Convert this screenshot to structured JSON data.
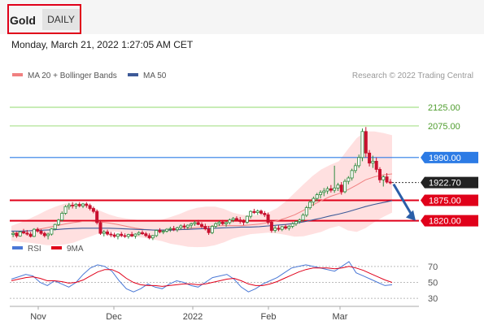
{
  "header": {
    "symbol": "Gold",
    "period_label": "DAILY",
    "datetime": "Monday, March 21, 2022 1:27:05 AM CET"
  },
  "colors": {
    "up": "#2e8b3e",
    "down": "#c8102e",
    "ma20": "#f08080",
    "ma50": "#3d5a98",
    "band_fill": "#ffd6d6",
    "resistance": "#a8e08a",
    "pivot": "#2c7be5",
    "support": "#e0001a",
    "price": "#222222",
    "rsi": "#4a78d6",
    "rsi_ma": "#e0001a"
  },
  "chart_data": [
    {
      "type": "candlestick",
      "title": "",
      "legend": [
        {
          "name": "MA 20 + Bollinger Bands",
          "color": "#f08080"
        },
        {
          "name": "MA 50",
          "color": "#3d5a98"
        }
      ],
      "credit": "Research © 2022 Trading Central",
      "ylim": [
        1758,
        2195
      ],
      "x_ticks": [
        "Nov",
        "Dec",
        "2022",
        "Feb",
        "Mar"
      ],
      "levels": [
        {
          "label": "2125.00",
          "value": 2125,
          "kind": "resistance"
        },
        {
          "label": "2075.00",
          "value": 2075,
          "kind": "resistance"
        },
        {
          "label": "1990.00",
          "value": 1990,
          "kind": "pivot"
        },
        {
          "label": "1922.70",
          "value": 1922.7,
          "kind": "last"
        },
        {
          "label": "1875.00",
          "value": 1875,
          "kind": "support"
        },
        {
          "label": "1820.00",
          "value": 1820,
          "kind": "support"
        }
      ],
      "candles": [
        [
          1783,
          1791,
          1776,
          1786
        ],
        [
          1786,
          1790,
          1774,
          1779
        ],
        [
          1779,
          1793,
          1777,
          1790
        ],
        [
          1790,
          1798,
          1784,
          1787
        ],
        [
          1787,
          1795,
          1780,
          1784
        ],
        [
          1784,
          1790,
          1775,
          1778
        ],
        [
          1778,
          1800,
          1776,
          1797
        ],
        [
          1797,
          1802,
          1788,
          1792
        ],
        [
          1792,
          1797,
          1782,
          1786
        ],
        [
          1786,
          1791,
          1775,
          1780
        ],
        [
          1780,
          1788,
          1770,
          1784
        ],
        [
          1784,
          1800,
          1780,
          1798
        ],
        [
          1798,
          1812,
          1794,
          1810
        ],
        [
          1810,
          1825,
          1806,
          1822
        ],
        [
          1822,
          1845,
          1818,
          1840
        ],
        [
          1840,
          1862,
          1836,
          1858
        ],
        [
          1858,
          1868,
          1850,
          1862
        ],
        [
          1862,
          1870,
          1853,
          1860
        ],
        [
          1860,
          1868,
          1852,
          1864
        ],
        [
          1864,
          1870,
          1856,
          1860
        ],
        [
          1860,
          1868,
          1854,
          1865
        ],
        [
          1865,
          1870,
          1855,
          1861
        ],
        [
          1861,
          1866,
          1848,
          1853
        ],
        [
          1853,
          1858,
          1840,
          1845
        ],
        [
          1845,
          1850,
          1810,
          1815
        ],
        [
          1815,
          1822,
          1782,
          1786
        ],
        [
          1786,
          1795,
          1778,
          1790
        ],
        [
          1790,
          1796,
          1780,
          1784
        ],
        [
          1784,
          1790,
          1776,
          1782
        ],
        [
          1782,
          1788,
          1774,
          1778
        ],
        [
          1778,
          1786,
          1770,
          1784
        ],
        [
          1784,
          1790,
          1776,
          1780
        ],
        [
          1780,
          1786,
          1774,
          1778
        ],
        [
          1778,
          1785,
          1772,
          1783
        ],
        [
          1783,
          1790,
          1776,
          1779
        ],
        [
          1779,
          1786,
          1772,
          1784
        ],
        [
          1784,
          1792,
          1780,
          1788
        ],
        [
          1788,
          1794,
          1782,
          1785
        ],
        [
          1785,
          1790,
          1776,
          1780
        ],
        [
          1780,
          1786,
          1770,
          1774
        ],
        [
          1774,
          1782,
          1768,
          1780
        ],
        [
          1780,
          1796,
          1776,
          1794
        ],
        [
          1794,
          1800,
          1786,
          1790
        ],
        [
          1790,
          1796,
          1784,
          1792
        ],
        [
          1792,
          1800,
          1788,
          1797
        ],
        [
          1797,
          1804,
          1790,
          1799
        ],
        [
          1799,
          1806,
          1792,
          1796
        ],
        [
          1796,
          1804,
          1790,
          1801
        ],
        [
          1801,
          1810,
          1796,
          1806
        ],
        [
          1806,
          1812,
          1798,
          1803
        ],
        [
          1803,
          1810,
          1796,
          1808
        ],
        [
          1808,
          1815,
          1800,
          1812
        ],
        [
          1812,
          1820,
          1806,
          1815
        ],
        [
          1815,
          1822,
          1808,
          1810
        ],
        [
          1810,
          1816,
          1800,
          1805
        ],
        [
          1805,
          1812,
          1794,
          1798
        ],
        [
          1798,
          1806,
          1782,
          1788
        ],
        [
          1788,
          1808,
          1784,
          1805
        ],
        [
          1805,
          1816,
          1800,
          1812
        ],
        [
          1812,
          1820,
          1806,
          1816
        ],
        [
          1816,
          1822,
          1808,
          1812
        ],
        [
          1812,
          1818,
          1804,
          1815
        ],
        [
          1815,
          1826,
          1810,
          1822
        ],
        [
          1822,
          1830,
          1816,
          1826
        ],
        [
          1826,
          1832,
          1818,
          1822
        ],
        [
          1822,
          1830,
          1812,
          1818
        ],
        [
          1818,
          1824,
          1808,
          1816
        ],
        [
          1816,
          1834,
          1812,
          1832
        ],
        [
          1832,
          1848,
          1826,
          1845
        ],
        [
          1845,
          1852,
          1838,
          1842
        ],
        [
          1842,
          1850,
          1836,
          1846
        ],
        [
          1846,
          1850,
          1836,
          1840
        ],
        [
          1840,
          1846,
          1830,
          1836
        ],
        [
          1836,
          1842,
          1810,
          1816
        ],
        [
          1816,
          1822,
          1788,
          1794
        ],
        [
          1794,
          1806,
          1788,
          1800
        ],
        [
          1800,
          1808,
          1792,
          1797
        ],
        [
          1797,
          1806,
          1792,
          1804
        ],
        [
          1804,
          1810,
          1796,
          1800
        ],
        [
          1800,
          1808,
          1794,
          1805
        ],
        [
          1805,
          1816,
          1800,
          1812
        ],
        [
          1812,
          1820,
          1806,
          1818
        ],
        [
          1818,
          1826,
          1812,
          1822
        ],
        [
          1822,
          1840,
          1818,
          1835
        ],
        [
          1835,
          1860,
          1830,
          1855
        ],
        [
          1855,
          1875,
          1850,
          1870
        ],
        [
          1870,
          1885,
          1860,
          1880
        ],
        [
          1880,
          1895,
          1872,
          1890
        ],
        [
          1890,
          1902,
          1880,
          1896
        ],
        [
          1896,
          1908,
          1886,
          1900
        ],
        [
          1900,
          1912,
          1892,
          1906
        ],
        [
          1906,
          1916,
          1896,
          1902
        ],
        [
          1902,
          1968,
          1895,
          1908
        ],
        [
          1908,
          1922,
          1900,
          1916
        ],
        [
          1916,
          1924,
          1890,
          1898
        ],
        [
          1898,
          1932,
          1894,
          1926
        ],
        [
          1926,
          1940,
          1918,
          1935
        ],
        [
          1935,
          1960,
          1928,
          1955
        ],
        [
          1955,
          1975,
          1948,
          1968
        ],
        [
          1968,
          1998,
          1962,
          1990
        ],
        [
          1990,
          2068,
          1980,
          2060
        ],
        [
          2060,
          2072,
          1990,
          2002
        ],
        [
          2002,
          2010,
          1966,
          1975
        ],
        [
          1975,
          1995,
          1962,
          1980
        ],
        [
          1980,
          1990,
          1950,
          1958
        ],
        [
          1958,
          1964,
          1922,
          1930
        ],
        [
          1930,
          1942,
          1912,
          1938
        ],
        [
          1938,
          1948,
          1920,
          1924
        ],
        [
          1924,
          1932,
          1918,
          1922.7
        ]
      ],
      "ma20": [
        1786,
        1789,
        1793,
        1797,
        1801,
        1806,
        1811,
        1815,
        1818,
        1818,
        1817,
        1814,
        1810,
        1805,
        1800,
        1797,
        1795,
        1794,
        1794,
        1796,
        1799,
        1802,
        1804,
        1806,
        1807,
        1807,
        1807,
        1809,
        1811,
        1815,
        1820,
        1827,
        1836,
        1848,
        1862,
        1874,
        1885,
        1893,
        1903,
        1916,
        1930,
        1938,
        1943,
        1946
      ],
      "bb_upper": [
        1806,
        1815,
        1825,
        1836,
        1848,
        1858,
        1866,
        1869,
        1866,
        1858,
        1847,
        1837,
        1830,
        1826,
        1823,
        1820,
        1820,
        1823,
        1830,
        1838,
        1848,
        1855,
        1858,
        1858,
        1852,
        1842,
        1836,
        1834,
        1836,
        1842,
        1854,
        1872,
        1895,
        1918,
        1940,
        1958,
        1970,
        1980,
        2012,
        2042,
        2060,
        2060,
        2056,
        2050
      ],
      "bb_lower": [
        1766,
        1763,
        1761,
        1758,
        1754,
        1754,
        1756,
        1761,
        1770,
        1778,
        1787,
        1791,
        1790,
        1784,
        1777,
        1774,
        1770,
        1765,
        1758,
        1754,
        1750,
        1749,
        1750,
        1754,
        1762,
        1772,
        1778,
        1784,
        1786,
        1788,
        1786,
        1782,
        1777,
        1778,
        1784,
        1790,
        1800,
        1806,
        1794,
        1790,
        1800,
        1816,
        1830,
        1842
      ],
      "ma50": [
        1792,
        1792,
        1793,
        1794,
        1795,
        1796,
        1798,
        1799,
        1800,
        1800,
        1800,
        1800,
        1799,
        1798,
        1797,
        1796,
        1795,
        1795,
        1795,
        1796,
        1797,
        1798,
        1799,
        1800,
        1801,
        1802,
        1803,
        1803,
        1804,
        1806,
        1808,
        1810,
        1813,
        1817,
        1822,
        1827,
        1833,
        1838,
        1844,
        1851,
        1858,
        1864,
        1869,
        1874
      ]
    },
    {
      "type": "line",
      "title": "",
      "legend": [
        {
          "name": "RSI",
          "color": "#4a78d6"
        },
        {
          "name": "9MA",
          "color": "#e0001a"
        }
      ],
      "ylim": [
        25,
        80
      ],
      "y_ticks": [
        "70",
        "50",
        "30"
      ],
      "series": [
        {
          "name": "RSI",
          "values": [
            54,
            57,
            60,
            58,
            50,
            46,
            52,
            48,
            44,
            50,
            60,
            68,
            72,
            70,
            64,
            52,
            42,
            38,
            42,
            48,
            44,
            42,
            48,
            52,
            50,
            46,
            44,
            50,
            56,
            58,
            60,
            54,
            44,
            38,
            42,
            48,
            52,
            56,
            62,
            68,
            70,
            72,
            70,
            68,
            66,
            64,
            70,
            76,
            62,
            58,
            54,
            50,
            46,
            47
          ]
        },
        {
          "name": "9MA",
          "values": [
            52,
            54,
            56,
            57,
            55,
            52,
            52,
            51,
            49,
            50,
            53,
            58,
            63,
            66,
            66,
            62,
            55,
            50,
            47,
            46,
            46,
            45,
            46,
            47,
            48,
            48,
            47,
            48,
            50,
            52,
            54,
            55,
            52,
            48,
            46,
            46,
            48,
            51,
            55,
            59,
            63,
            66,
            68,
            68,
            68,
            67,
            68,
            70,
            68,
            65,
            61,
            57,
            53,
            50
          ]
        }
      ]
    }
  ]
}
